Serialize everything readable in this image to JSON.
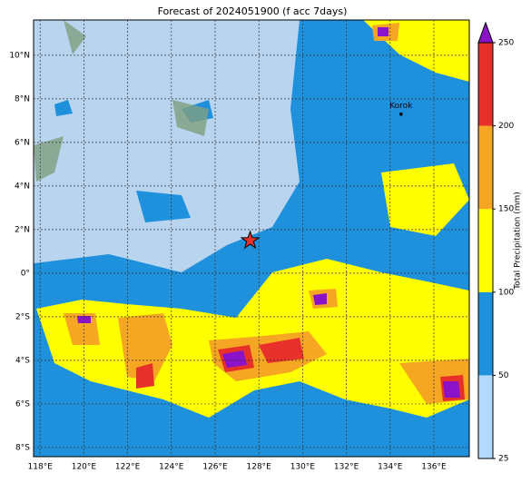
{
  "title": "Forecast of 2024051900 (f acc 7days)",
  "xlim": [
    117.7,
    137.62
  ],
  "ylim": [
    -8.42,
    11.62
  ],
  "lon_ticks": [
    {
      "value": 118,
      "label": "118°E"
    },
    {
      "value": 120,
      "label": "120°E"
    },
    {
      "value": 122,
      "label": "122°E"
    },
    {
      "value": 124,
      "label": "124°E"
    },
    {
      "value": 126,
      "label": "126°E"
    },
    {
      "value": 128,
      "label": "128°E"
    },
    {
      "value": 130,
      "label": "130°E"
    },
    {
      "value": 132,
      "label": "132°E"
    },
    {
      "value": 134,
      "label": "134°E"
    },
    {
      "value": 136,
      "label": "136°E"
    }
  ],
  "lat_ticks": [
    {
      "value": 10,
      "label": "10°N"
    },
    {
      "value": 8,
      "label": "8°N"
    },
    {
      "value": 6,
      "label": "6°N"
    },
    {
      "value": 4,
      "label": "4°N"
    },
    {
      "value": 2,
      "label": "2°N"
    },
    {
      "value": 0,
      "label": "0°"
    },
    {
      "value": -2,
      "label": "2°S"
    },
    {
      "value": -4,
      "label": "4°S"
    },
    {
      "value": -6,
      "label": "6°S"
    },
    {
      "value": -8,
      "label": "8°S"
    }
  ],
  "colorbar": {
    "label": "Total Precipitation (mm)",
    "levels": [
      25,
      50,
      100,
      150,
      200,
      250
    ],
    "colors": [
      "#b3d9ff",
      "#1e90dc",
      "#ffff00",
      "#f5a623",
      "#e8302a"
    ],
    "extend_color": "#8a12c8"
  },
  "star": {
    "lon": 127.6,
    "lat": 1.5
  },
  "place": {
    "name": "Korok",
    "lon": 134.5,
    "lat": 7.3
  }
}
